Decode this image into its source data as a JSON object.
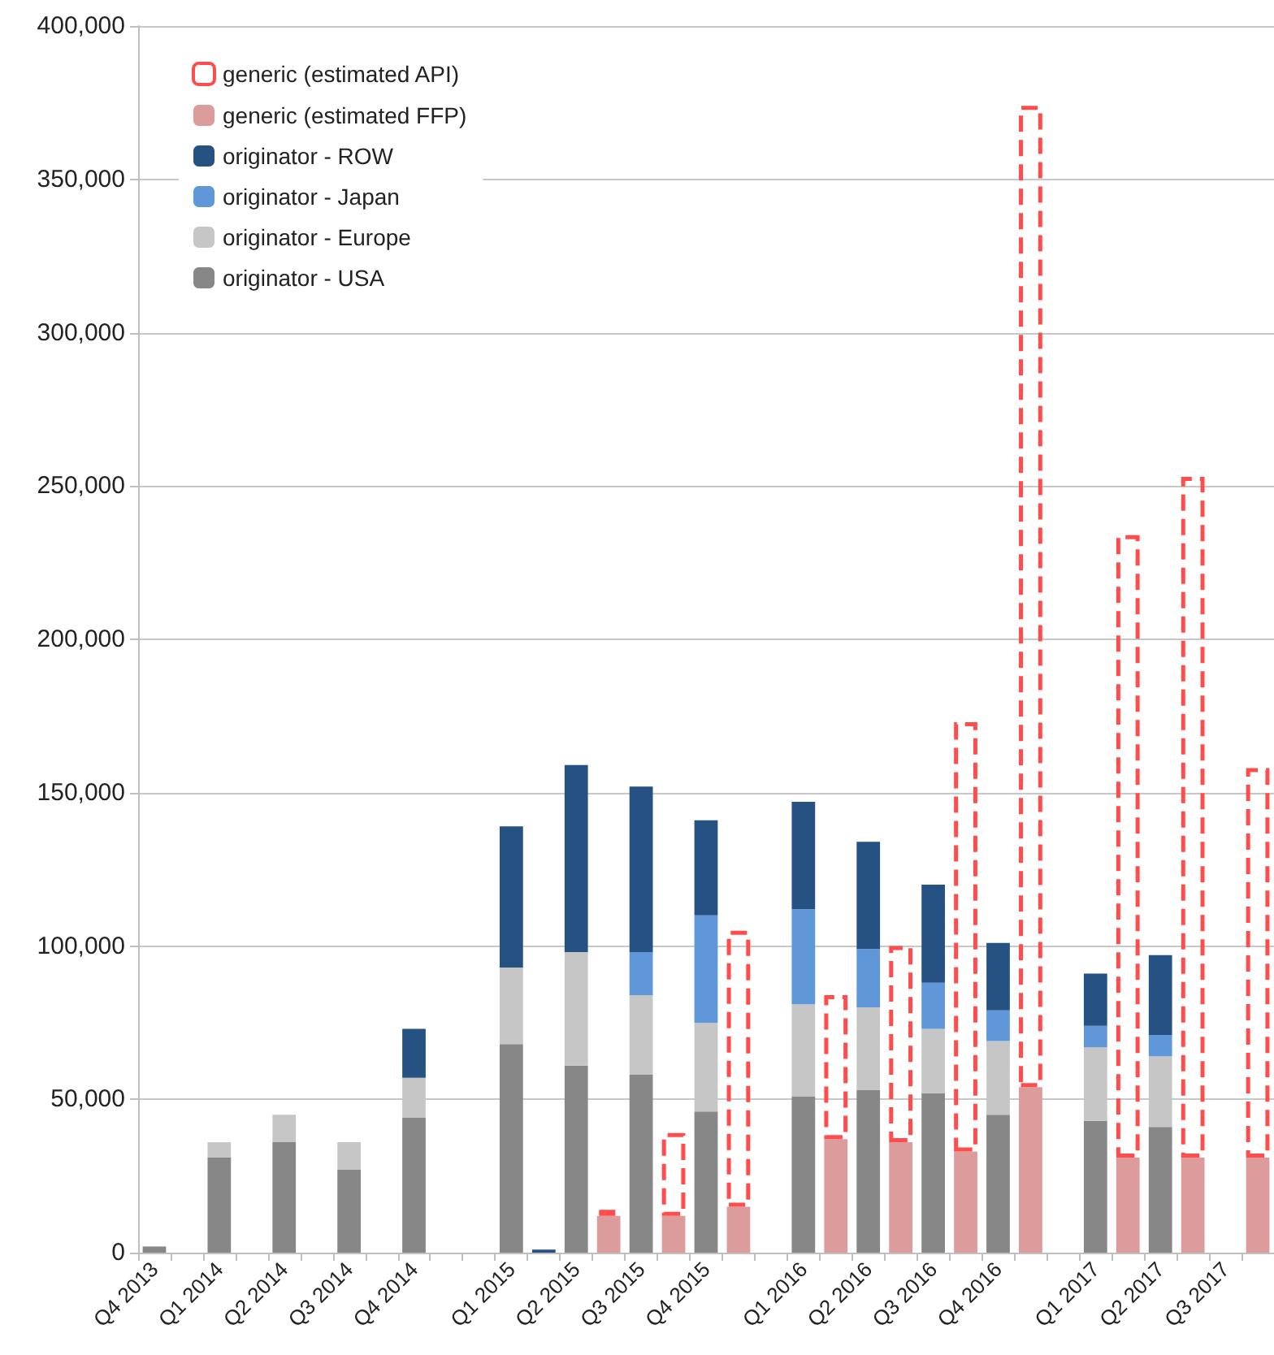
{
  "chart_data": {
    "type": "bar",
    "stacked": true,
    "categories": [
      "Q4 2013",
      null,
      "Q1 2014",
      null,
      "Q2 2014",
      null,
      "Q3 2014",
      null,
      "Q4 2014",
      null,
      null,
      "Q1 2015",
      null,
      "Q2 2015",
      null,
      "Q3 2015",
      null,
      "Q4 2015",
      null,
      null,
      "Q1 2016",
      null,
      "Q2 2016",
      null,
      "Q3 2016",
      null,
      "Q4 2016",
      null,
      null,
      "Q1 2017",
      null,
      "Q2 2017",
      null,
      "Q3 2017",
      null
    ],
    "series": [
      {
        "name": "originator - USA",
        "color": "#878787",
        "values": [
          2000,
          null,
          31000,
          null,
          36000,
          null,
          27000,
          null,
          44000,
          null,
          null,
          68000,
          null,
          61000,
          null,
          58000,
          null,
          46000,
          null,
          null,
          51000,
          null,
          53000,
          null,
          52000,
          null,
          45000,
          null,
          null,
          43000,
          null,
          41000,
          null,
          null,
          null
        ]
      },
      {
        "name": "originator - Europe",
        "color": "#c6c6c6",
        "values": [
          null,
          null,
          5000,
          null,
          9000,
          null,
          9000,
          null,
          13000,
          null,
          null,
          25000,
          null,
          37000,
          null,
          26000,
          null,
          29000,
          null,
          null,
          30000,
          null,
          27000,
          null,
          21000,
          null,
          24000,
          null,
          null,
          24000,
          null,
          23000,
          null,
          null,
          null
        ]
      },
      {
        "name": "originator - Japan",
        "color": "#5f97d8",
        "values": [
          null,
          null,
          null,
          null,
          null,
          null,
          null,
          null,
          null,
          null,
          null,
          null,
          null,
          null,
          null,
          14000,
          null,
          35000,
          null,
          null,
          31000,
          null,
          19000,
          null,
          15000,
          null,
          10000,
          null,
          null,
          7000,
          null,
          7000,
          null,
          null,
          null
        ]
      },
      {
        "name": "originator - ROW",
        "color": "#255283",
        "values": [
          null,
          null,
          null,
          null,
          null,
          null,
          null,
          null,
          16000,
          null,
          null,
          46000,
          1000,
          61000,
          null,
          54000,
          null,
          31000,
          null,
          null,
          35000,
          null,
          35000,
          null,
          32000,
          null,
          22000,
          null,
          null,
          17000,
          null,
          26000,
          null,
          null,
          null
        ]
      },
      {
        "name": "generic (estimated FFP)",
        "color": "#dc9c9c",
        "values": [
          null,
          null,
          null,
          null,
          null,
          null,
          null,
          null,
          null,
          null,
          null,
          null,
          null,
          null,
          12000,
          null,
          12000,
          null,
          15000,
          null,
          null,
          37000,
          null,
          36000,
          null,
          33000,
          null,
          54000,
          null,
          null,
          31000,
          null,
          31000,
          null,
          31000
        ]
      },
      {
        "name": "generic (estimated API)",
        "color": "#ff4d4d",
        "line_style": "dashed",
        "values": [
          null,
          null,
          null,
          null,
          null,
          null,
          null,
          null,
          null,
          null,
          null,
          null,
          null,
          null,
          2000,
          null,
          27000,
          null,
          90000,
          null,
          null,
          47000,
          null,
          64000,
          null,
          140000,
          null,
          320000,
          null,
          null,
          203000,
          null,
          222000,
          null,
          127000
        ]
      }
    ],
    "ylim": [
      0,
      400000
    ],
    "yticks": [
      0,
      {
        "value": 50000,
        "label": "50,000"
      },
      {
        "value": 100000,
        "label": "100,000"
      },
      {
        "value": 150000,
        "label": "150,000"
      },
      {
        "value": 200000,
        "label": "200,000"
      },
      {
        "value": 250000,
        "label": "250,000"
      },
      {
        "value": 300000,
        "label": "300,000"
      },
      {
        "value": 350000,
        "label": "350,000"
      },
      {
        "value": 400000,
        "label": "400,000"
      }
    ],
    "grid": "y",
    "legend": "top left"
  }
}
